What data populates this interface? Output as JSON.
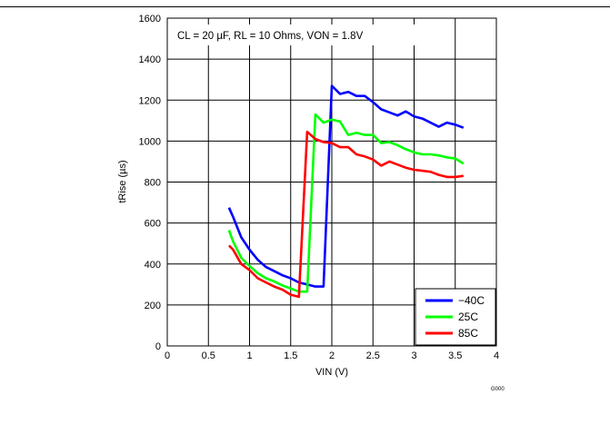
{
  "chart_data": {
    "type": "line",
    "title": "",
    "annotation": "CL = 20 µF, RL = 10 Ohms, VON = 1.8V",
    "xlabel": "VIN (V)",
    "ylabel": "tRise (µs)",
    "xlim": [
      0,
      4
    ],
    "ylim": [
      0,
      1600
    ],
    "xticks": [
      "0",
      "0.5",
      "1",
      "1.5",
      "2",
      "2.5",
      "3",
      "3.5",
      "4"
    ],
    "yticks": [
      "0",
      "200",
      "400",
      "600",
      "800",
      "1000",
      "1200",
      "1400",
      "1600"
    ],
    "grid": true,
    "legend_position": "bottom-right",
    "figure_id": "G000",
    "series": [
      {
        "name": "−40C",
        "color": "#0000ff",
        "x": [
          0.75,
          0.8,
          0.9,
          1.0,
          1.1,
          1.2,
          1.3,
          1.4,
          1.5,
          1.6,
          1.7,
          1.8,
          1.9,
          2.0,
          2.1,
          2.2,
          2.3,
          2.4,
          2.5,
          2.6,
          2.7,
          2.8,
          2.9,
          3.0,
          3.1,
          3.2,
          3.3,
          3.4,
          3.5,
          3.6
        ],
        "y": [
          675,
          630,
          530,
          470,
          420,
          385,
          365,
          345,
          330,
          310,
          300,
          290,
          290,
          1270,
          1230,
          1240,
          1220,
          1220,
          1190,
          1155,
          1140,
          1125,
          1145,
          1120,
          1110,
          1090,
          1070,
          1090,
          1080,
          1065
        ]
      },
      {
        "name": "25C",
        "color": "#00ff00",
        "x": [
          0.75,
          0.8,
          0.9,
          1.0,
          1.1,
          1.2,
          1.3,
          1.4,
          1.5,
          1.6,
          1.7,
          1.8,
          1.9,
          2.0,
          2.1,
          2.2,
          2.3,
          2.4,
          2.5,
          2.6,
          2.7,
          2.8,
          2.9,
          3.0,
          3.1,
          3.2,
          3.3,
          3.4,
          3.5,
          3.6
        ],
        "y": [
          565,
          510,
          430,
          390,
          355,
          330,
          315,
          295,
          280,
          265,
          265,
          1130,
          1090,
          1105,
          1095,
          1030,
          1040,
          1030,
          1030,
          990,
          995,
          980,
          960,
          945,
          935,
          935,
          930,
          920,
          915,
          890
        ]
      },
      {
        "name": "85C",
        "color": "#ff0000",
        "x": [
          0.75,
          0.8,
          0.9,
          1.0,
          1.1,
          1.2,
          1.3,
          1.4,
          1.5,
          1.6,
          1.7,
          1.8,
          1.9,
          2.0,
          2.1,
          2.2,
          2.3,
          2.4,
          2.5,
          2.6,
          2.7,
          2.8,
          2.9,
          3.0,
          3.1,
          3.2,
          3.3,
          3.4,
          3.5,
          3.6
        ],
        "y": [
          490,
          470,
          400,
          370,
          330,
          310,
          290,
          275,
          250,
          240,
          1045,
          1010,
          995,
          990,
          970,
          970,
          935,
          925,
          910,
          880,
          900,
          885,
          870,
          860,
          855,
          850,
          835,
          825,
          825,
          830
        ]
      }
    ]
  }
}
